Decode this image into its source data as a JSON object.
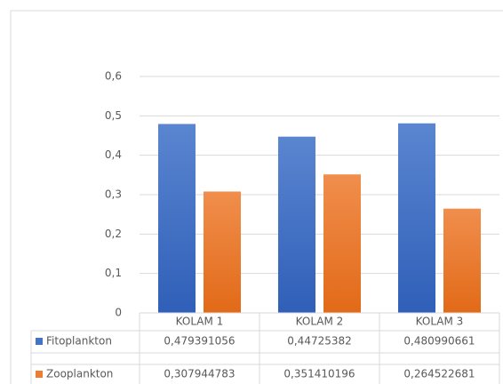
{
  "chart_data": {
    "type": "bar",
    "categories": [
      "KOLAM 1",
      "KOLAM 2",
      "KOLAM 3"
    ],
    "series": [
      {
        "name": "Fitoplankton",
        "color": "#4472c4",
        "values": [
          0.479391056,
          0.44725382,
          0.480990661
        ],
        "value_labels": [
          "0,479391056",
          "0,44725382",
          "0,480990661"
        ]
      },
      {
        "name": "Zooplankton",
        "color": "#ed7d31",
        "values": [
          0.307944783,
          0.351410196,
          0.264522681
        ],
        "value_labels": [
          "0,307944783",
          "0,351410196",
          "0,264522681"
        ]
      }
    ],
    "ylim": [
      0,
      0.6
    ],
    "yticks": [
      0,
      {
        "value": 0.1,
        "label": "0,1"
      },
      {
        "value": 0.2,
        "label": "0,2"
      },
      {
        "value": 0.3,
        "label": "0,3"
      },
      {
        "value": 0.4,
        "label": "0,4"
      },
      {
        "value": 0.5,
        "label": "0,5"
      },
      {
        "value": 0.6,
        "label": "0,6"
      }
    ],
    "grid": true
  }
}
